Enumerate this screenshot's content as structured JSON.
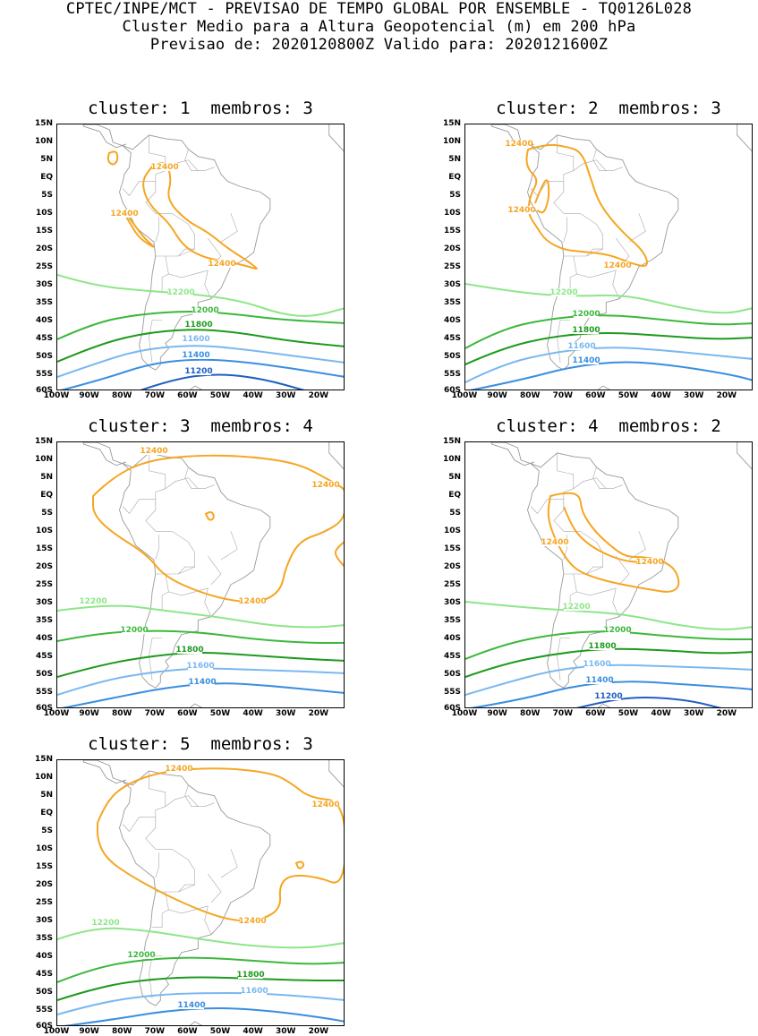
{
  "header": {
    "line1": "CPTEC/INPE/MCT - PREVISAO DE TEMPO GLOBAL POR ENSEMBLE - TQ0126L028",
    "line2": "Cluster Medio para a Altura Geopotencial (m) em 200 hPa",
    "line3": "Previsao de: 2020120800Z    Valido para: 2020121600Z"
  },
  "axes": {
    "lat_labels": [
      "15N",
      "10N",
      "5N",
      "EQ",
      "5S",
      "10S",
      "15S",
      "20S",
      "25S",
      "30S",
      "35S",
      "40S",
      "45S",
      "50S",
      "55S",
      "60S"
    ],
    "lon_labels": [
      "100W",
      "90W",
      "80W",
      "70W",
      "60W",
      "50W",
      "40W",
      "30W",
      "20W"
    ]
  },
  "level_colors": {
    "12400": "#f5a623",
    "12200": "#8ee68a",
    "12000": "#3cb83c",
    "11800": "#1e9a1e",
    "11600": "#7ab8f0",
    "11400": "#3a8ee0",
    "11200": "#1f5fc0"
  },
  "chart_data": [
    {
      "type": "contour",
      "title": "cluster: 1  membros: 3",
      "levels": [
        "12400",
        "12200",
        "12000",
        "11800",
        "11600",
        "11400",
        "11200"
      ]
    },
    {
      "type": "contour",
      "title": "cluster: 2  membros: 3",
      "levels": [
        "12400",
        "12200",
        "12000",
        "11800",
        "11600",
        "11400"
      ]
    },
    {
      "type": "contour",
      "title": "cluster: 3  membros: 4",
      "levels": [
        "12400",
        "12200",
        "12000",
        "11800",
        "11600",
        "11400"
      ]
    },
    {
      "type": "contour",
      "title": "cluster: 4  membros: 2",
      "levels": [
        "12400",
        "12200",
        "12000",
        "11800",
        "11600",
        "11400",
        "11200"
      ]
    },
    {
      "type": "contour",
      "title": "cluster: 5  membros: 3",
      "levels": [
        "12400",
        "12200",
        "12000",
        "11800",
        "11600",
        "11400"
      ]
    }
  ],
  "panels": [
    {
      "title": "cluster: 1  membros: 3",
      "labels": [
        "12400",
        "12400",
        "12400",
        "12200",
        "12000",
        "11800",
        "11600",
        "11400",
        "11200"
      ]
    },
    {
      "title": "cluster: 2  membros: 3",
      "labels": [
        "12400",
        "12400",
        "12400",
        "12200",
        "12000",
        "11800",
        "11600",
        "11400"
      ]
    },
    {
      "title": "cluster: 3  membros: 4",
      "labels": [
        "12400",
        "12400",
        "12400",
        "12200",
        "12000",
        "11800",
        "11600",
        "11400"
      ]
    },
    {
      "title": "cluster: 4  membros: 2",
      "labels": [
        "12400",
        "12400",
        "12200",
        "12000",
        "11800",
        "11600",
        "11400",
        "11200"
      ]
    },
    {
      "title": "cluster: 5  membros: 3",
      "labels": [
        "12400",
        "12400",
        "12400",
        "12200",
        "12000",
        "11800",
        "11600",
        "11400"
      ]
    }
  ]
}
